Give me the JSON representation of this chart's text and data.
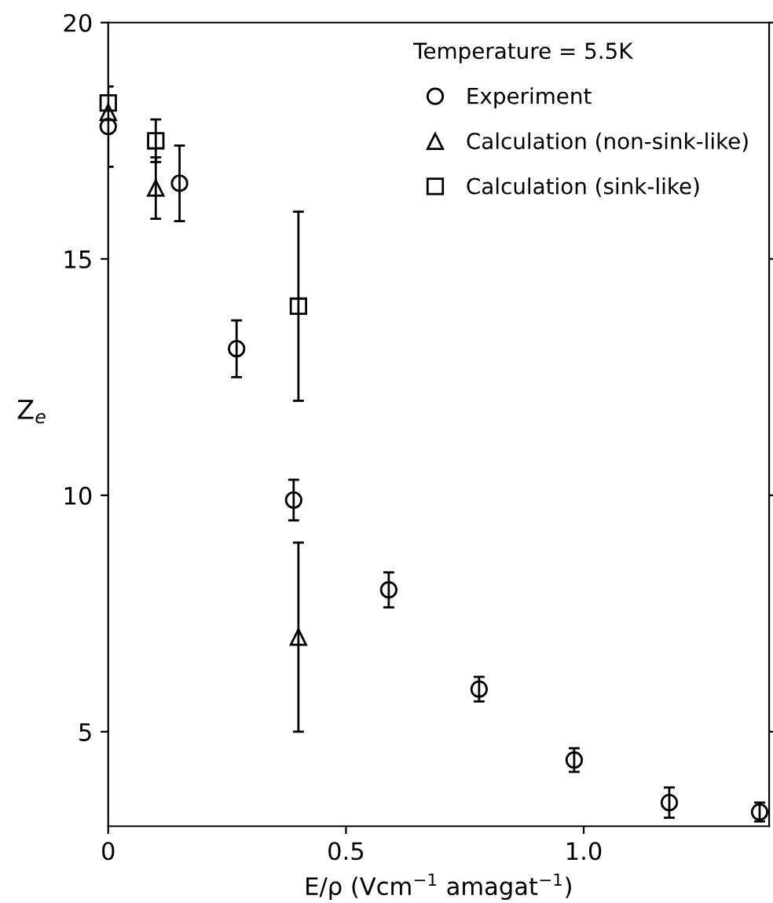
{
  "chart_data": {
    "type": "scatter",
    "xlabel": "E/ρ (Vcm$^{−1}$ amagat$^{−1}$)",
    "ylabel": "Z$_{e}$",
    "legend_title": "Temperature = 5.5K",
    "legend": "top right",
    "xlim": [
      0,
      1.39
    ],
    "ylim": [
      3,
      20
    ],
    "xticks": [
      0,
      0.5,
      {
        "value": 1.0,
        "label": "1.0"
      }
    ],
    "yticks": [
      5,
      10,
      15,
      20
    ],
    "grid": false,
    "series": [
      {
        "name": "Experiment",
        "color": "#000000",
        "marker": "circle",
        "x": [
          0.0,
          0.15,
          0.27,
          0.39,
          0.59,
          0.78,
          0.98,
          1.18,
          1.37
        ],
        "values": [
          17.8,
          16.6,
          13.1,
          9.9,
          8.0,
          5.9,
          4.4,
          3.5,
          3.3
        ],
        "errors": [
          0.85,
          0.8,
          0.6,
          0.43,
          0.37,
          0.26,
          0.25,
          0.32,
          0.2
        ]
      },
      {
        "name": "Calculation (non-sink-like)",
        "color": "#000000",
        "marker": "triangle",
        "x": [
          0.0,
          0.1,
          0.4
        ],
        "values": [
          18.1,
          16.5,
          7.0
        ],
        "errors": [
          null,
          0.65,
          2.0
        ]
      },
      {
        "name": "Calculation (sink-like)",
        "color": "#000000",
        "marker": "square",
        "x": [
          0.0,
          0.1,
          0.4
        ],
        "values": [
          18.3,
          17.5,
          14.0
        ],
        "errors": [
          null,
          0.45,
          2.0
        ]
      }
    ]
  }
}
